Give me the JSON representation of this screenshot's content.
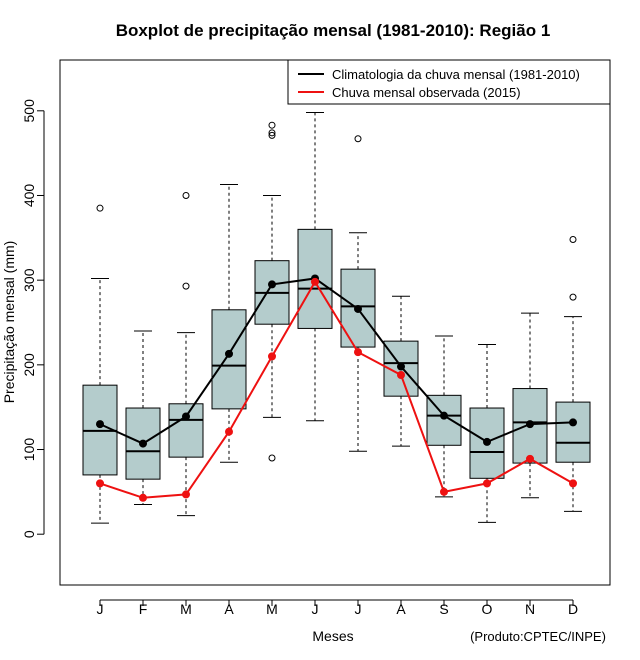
{
  "chart_data": {
    "type": "boxplot",
    "title": "Boxplot de precipitação mensal (1981-2010): Região 1",
    "xlabel": "Meses",
    "ylabel": "Precipitação mensal (mm)",
    "ylim": [
      -60,
      560
    ],
    "yticks": [
      0,
      100,
      200,
      300,
      400,
      500
    ],
    "categories": [
      "J",
      "F",
      "M",
      "A",
      "M",
      "J",
      "J",
      "A",
      "S",
      "O",
      "N",
      "D"
    ],
    "boxes": [
      {
        "min": 13,
        "q1": 70,
        "median": 122,
        "q3": 176,
        "max": 302,
        "outliers": [
          385
        ]
      },
      {
        "min": 35,
        "q1": 65,
        "median": 98,
        "q3": 149,
        "max": 240,
        "outliers": []
      },
      {
        "min": 22,
        "q1": 91,
        "median": 135,
        "q3": 154,
        "max": 238,
        "outliers": [
          293,
          400
        ]
      },
      {
        "min": 85,
        "q1": 148,
        "median": 199,
        "q3": 265,
        "max": 413,
        "outliers": []
      },
      {
        "min": 138,
        "q1": 248,
        "median": 285,
        "q3": 323,
        "max": 400,
        "outliers": [
          90,
          471,
          474,
          483
        ]
      },
      {
        "min": 134,
        "q1": 243,
        "median": 290,
        "q3": 360,
        "max": 498,
        "outliers": []
      },
      {
        "min": 98,
        "q1": 221,
        "median": 269,
        "q3": 313,
        "max": 356,
        "outliers": [
          467
        ]
      },
      {
        "min": 104,
        "q1": 163,
        "median": 202,
        "q3": 228,
        "max": 281,
        "outliers": []
      },
      {
        "min": 44,
        "q1": 105,
        "median": 140,
        "q3": 164,
        "max": 234,
        "outliers": []
      },
      {
        "min": 14,
        "q1": 66,
        "median": 97,
        "q3": 149,
        "max": 224,
        "outliers": []
      },
      {
        "min": 43,
        "q1": 84,
        "median": 132,
        "q3": 172,
        "max": 261,
        "outliers": []
      },
      {
        "min": 27,
        "q1": 85,
        "median": 108,
        "q3": 156,
        "max": 257,
        "outliers": [
          280,
          348
        ]
      }
    ],
    "series": [
      {
        "name": "Climatologia da chuva mensal (1981-2010)",
        "color": "#000000",
        "values": [
          130,
          107,
          139,
          213,
          295,
          302,
          266,
          198,
          140,
          109,
          130,
          132
        ]
      },
      {
        "name": "Chuva mensal observada (2015)",
        "color": "#ee1111",
        "values": [
          60,
          43,
          47,
          121,
          210,
          298,
          215,
          188,
          50,
          60,
          89,
          60
        ]
      }
    ],
    "box_fill": "#b4cccc",
    "legend_position": "top-right",
    "credit": "(Produto:CPTEC/INPE)"
  }
}
